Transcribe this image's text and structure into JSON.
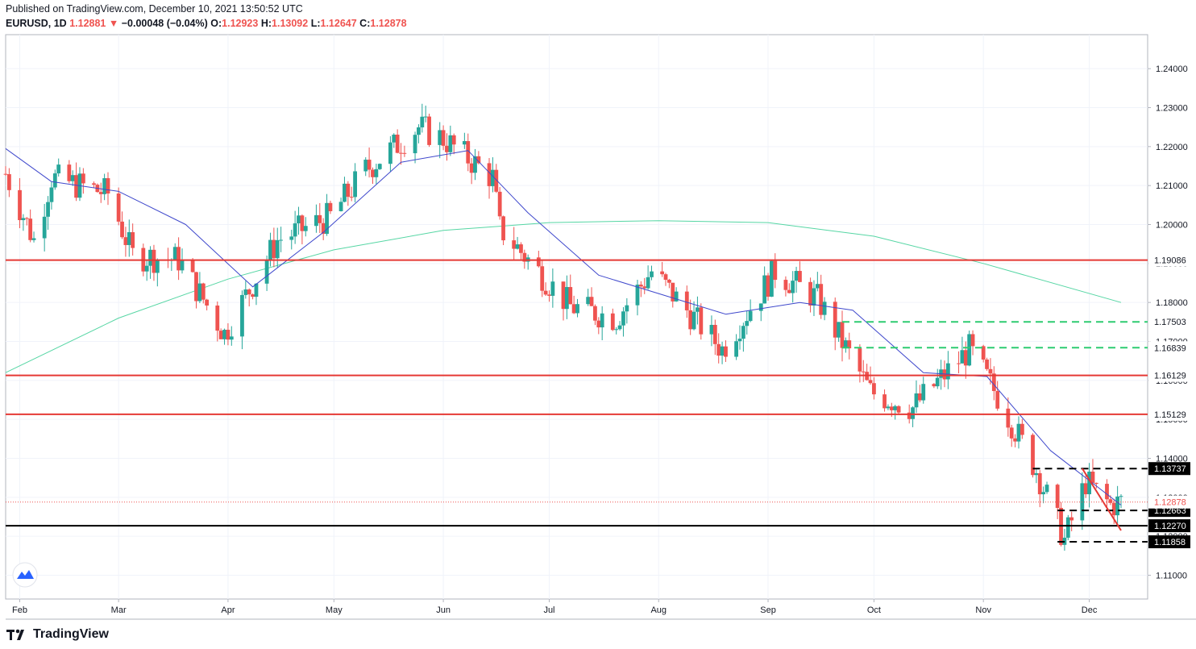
{
  "header": {
    "published": "Published on TradingView.com, December 10, 2021 13:50:52 UTC",
    "symbol": "EURUSD, 1D",
    "last": "1.12881",
    "change_arrow": "▼",
    "change": "−0.00048 (−0.04%)",
    "open_label": "O:",
    "open": "1.12923",
    "high_label": "H:",
    "high": "1.13092",
    "low_label": "L:",
    "low": "1.12647",
    "close_label": "C:",
    "close": "1.12878"
  },
  "brand": {
    "name": "TradingView",
    "logo_icon": "tradingview-logo-icon",
    "watermark_icon": "tradingview-watermark-icon"
  },
  "colors": {
    "up": "#26a69a",
    "down": "#ef5350",
    "ma_fast": "#3f48cc",
    "ma_slow": "#56d6a4",
    "level_red": "#e53935",
    "level_green": "#2ecc71",
    "level_black": "#000000"
  },
  "chart_data": {
    "type": "candlestick",
    "title": "EURUSD, 1D",
    "x_tick_labels": [
      "Feb",
      "Mar",
      "Apr",
      "May",
      "Jun",
      "Jul",
      "Aug",
      "Sep",
      "Oct",
      "Nov",
      "Dec"
    ],
    "y_ticks": [
      1.11,
      1.12,
      1.13,
      1.14,
      1.15,
      1.16,
      1.17,
      1.18,
      1.19,
      1.2,
      1.21,
      1.22,
      1.23,
      1.24
    ],
    "y_tick_labels": [
      "1.11000",
      "1.12000",
      "1.13000",
      "1.14000",
      "1.15000",
      "1.16000",
      "1.17000",
      "1.18000",
      "1.19000",
      "1.20000",
      "1.21000",
      "1.22000",
      "1.23000",
      "1.24000"
    ],
    "ylim": [
      1.105,
      1.2485
    ],
    "grid": true,
    "series": [
      {
        "name": "",
        "kind": "close_path",
        "x": [
          "2021-01-28",
          "2021-02-05",
          "2021-02-10",
          "2021-02-26",
          "2021-03-05",
          "2021-03-18",
          "2021-03-31",
          "2021-04-15",
          "2021-04-30",
          "2021-05-10",
          "2021-05-25",
          "2021-06-01",
          "2021-06-15",
          "2021-06-17",
          "2021-06-30",
          "2021-07-07",
          "2021-07-20",
          "2021-07-30",
          "2021-08-19",
          "2021-09-03",
          "2021-09-15",
          "2021-09-30",
          "2021-10-12",
          "2021-10-28",
          "2021-11-05",
          "2021-11-16",
          "2021-11-24",
          "2021-11-30",
          "2021-12-07",
          "2021-12-10"
        ],
        "close": [
          1.213,
          1.196,
          1.212,
          1.208,
          1.192,
          1.191,
          1.172,
          1.196,
          1.202,
          1.214,
          1.225,
          1.222,
          1.212,
          1.199,
          1.186,
          1.179,
          1.176,
          1.188,
          1.168,
          1.188,
          1.181,
          1.157,
          1.153,
          1.168,
          1.156,
          1.137,
          1.119,
          1.134,
          1.128,
          1.1288
        ]
      },
      {
        "name": "",
        "kind": "moving_average_fast",
        "x": [
          "2021-01-28",
          "2021-02-10",
          "2021-03-01",
          "2021-03-20",
          "2021-04-08",
          "2021-04-28",
          "2021-05-20",
          "2021-06-08",
          "2021-06-25",
          "2021-07-15",
          "2021-08-02",
          "2021-08-20",
          "2021-09-10",
          "2021-09-25",
          "2021-10-15",
          "2021-11-02",
          "2021-11-20",
          "2021-12-10"
        ],
        "values": [
          1.2195,
          1.211,
          1.2085,
          1.2,
          1.184,
          1.198,
          1.216,
          1.219,
          1.203,
          1.187,
          1.182,
          1.177,
          1.18,
          1.178,
          1.162,
          1.161,
          1.142,
          1.128
        ]
      },
      {
        "name": "",
        "kind": "moving_average_slow",
        "x": [
          "2021-01-28",
          "2021-03-01",
          "2021-04-01",
          "2021-05-01",
          "2021-06-01",
          "2021-07-01",
          "2021-08-01",
          "2021-09-01",
          "2021-10-01",
          "2021-11-01",
          "2021-12-10"
        ],
        "values": [
          1.162,
          1.176,
          1.186,
          1.1935,
          1.1985,
          1.2005,
          1.201,
          1.2005,
          1.197,
          1.19,
          1.18
        ]
      }
    ],
    "horizontal_levels": [
      {
        "value": 1.19086,
        "label": "1.19086",
        "color": "red",
        "style": "solid"
      },
      {
        "value": 1.17503,
        "label": "1.17503",
        "color": "green",
        "style": "dashed"
      },
      {
        "value": 1.16839,
        "label": "1.16839",
        "color": "green",
        "style": "dashed"
      },
      {
        "value": 1.16129,
        "label": "1.16129",
        "color": "red",
        "style": "solid"
      },
      {
        "value": 1.15129,
        "label": "1.15129",
        "color": "red",
        "style": "solid"
      },
      {
        "value": 1.13737,
        "label": "1.13737",
        "color": "black",
        "style": "dashed"
      },
      {
        "value": 1.12663,
        "label": "1.12663",
        "color": "black",
        "style": "dashed"
      },
      {
        "value": 1.1227,
        "label": "1.12270",
        "color": "black",
        "style": "solid"
      },
      {
        "value": 1.11858,
        "label": "1.11858",
        "color": "black",
        "style": "dashed"
      }
    ],
    "last_price": {
      "value": 1.12878,
      "label": "1.12878"
    },
    "trendline": {
      "from": [
        "2021-11-29",
        1.1374
      ],
      "to": [
        "2021-12-10",
        1.1215
      ]
    }
  }
}
